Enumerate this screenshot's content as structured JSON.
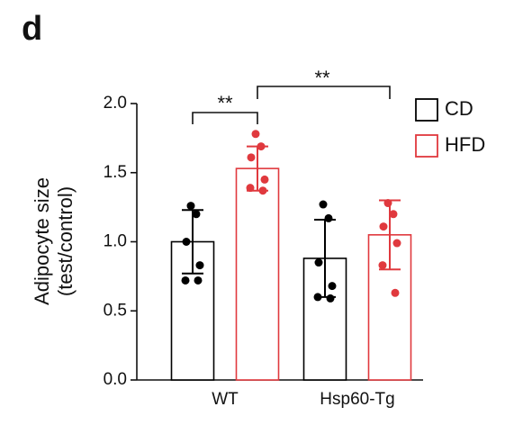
{
  "chart_data": {
    "type": "bar",
    "panel_label": "d",
    "y_label": [
      "Adipocyte size",
      "(test/control)"
    ],
    "categories": [
      "WT",
      "Hsp60-Tg"
    ],
    "series": [
      {
        "name": "CD",
        "color": "#000000",
        "values": [
          1.0,
          0.88
        ],
        "errors": [
          0.23,
          0.28
        ],
        "points": [
          [
            1.26,
            1.2,
            1.0,
            0.83,
            0.72,
            0.72
          ],
          [
            1.27,
            1.17,
            0.85,
            0.68,
            0.6,
            0.59
          ]
        ]
      },
      {
        "name": "HFD",
        "color": "#e0393e",
        "values": [
          1.53,
          1.05
        ],
        "errors": [
          0.16,
          0.25
        ],
        "points": [
          [
            1.78,
            1.69,
            1.61,
            1.45,
            1.39,
            1.37
          ],
          [
            1.28,
            1.2,
            1.11,
            0.99,
            0.83,
            0.63
          ]
        ]
      }
    ],
    "annotations": [
      "**",
      "**"
    ],
    "ylim": [
      0,
      2
    ],
    "yticks": [
      {
        "value": 0,
        "label": "0.0"
      },
      {
        "value": 0.5,
        "label": "0.5"
      },
      {
        "value": 1,
        "label": "1.0"
      },
      {
        "value": 1.5,
        "label": "1.5"
      },
      {
        "value": 2,
        "label": "2.0"
      }
    ],
    "legend": "top-right"
  }
}
